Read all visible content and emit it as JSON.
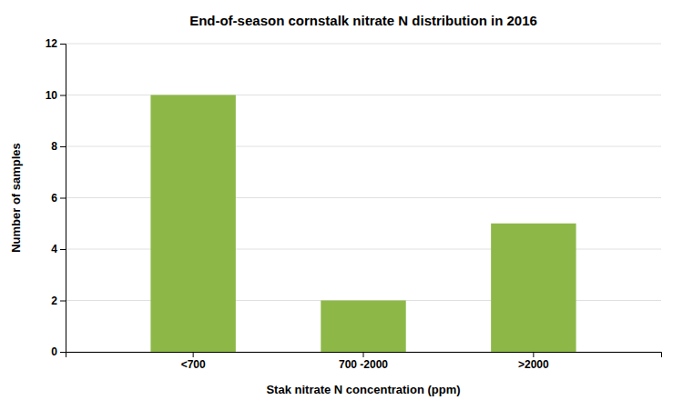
{
  "chart_data": {
    "type": "bar",
    "title": "End-of-season cornstalk nitrate N distribution in 2016",
    "categories": [
      "<700",
      "700 -2000",
      ">2000"
    ],
    "values": [
      10,
      2,
      5
    ],
    "color": "#8db848",
    "xlabel": "Stak nitrate N concentration (ppm)",
    "ylabel": "Number of samples",
    "ylim": [
      0,
      12
    ],
    "yticks": [
      0,
      2,
      4,
      6,
      8,
      10,
      12
    ],
    "grid": true
  }
}
